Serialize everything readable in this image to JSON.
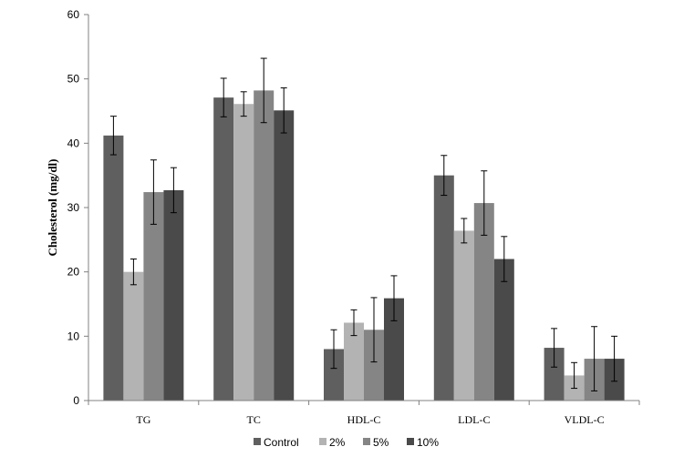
{
  "chart_data": {
    "type": "bar",
    "categories": [
      "TG",
      "TC",
      "HDL-C",
      "LDL-C",
      "VLDL-C"
    ],
    "series": [
      {
        "name": "Control",
        "color": "#5f5f5f",
        "values": [
          41.2,
          47.1,
          8.0,
          35.0,
          8.2
        ],
        "errors": [
          3.0,
          3.0,
          3.0,
          3.1,
          3.0
        ]
      },
      {
        "name": "2%",
        "color": "#b3b3b3",
        "values": [
          20.0,
          46.1,
          12.1,
          26.4,
          3.9
        ],
        "errors": [
          2.0,
          1.9,
          2.0,
          1.9,
          2.0
        ]
      },
      {
        "name": "5%",
        "color": "#858585",
        "values": [
          32.4,
          48.2,
          11.0,
          30.7,
          6.5
        ],
        "errors": [
          5.0,
          5.0,
          5.0,
          5.0,
          5.0
        ]
      },
      {
        "name": "10%",
        "color": "#4a4a4a",
        "values": [
          32.7,
          45.1,
          15.9,
          22.0,
          6.5
        ],
        "errors": [
          3.5,
          3.5,
          3.5,
          3.5,
          3.5
        ]
      }
    ],
    "title": "",
    "xlabel": "",
    "ylabel": "Cholesterol (mg/dl)",
    "ylim": [
      0,
      60
    ],
    "yticks": [
      "0",
      "10",
      "20",
      "30",
      "40",
      "50",
      "60"
    ],
    "grid": false,
    "legend_position": "bottom"
  }
}
